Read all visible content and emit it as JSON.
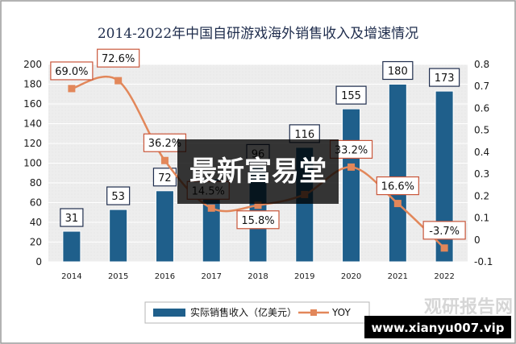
{
  "chart_data": {
    "type": "bar+line",
    "title": "2014-2022年中国自研游戏海外销售收入及增速情况",
    "categories": [
      "2014",
      "2015",
      "2016",
      "2017",
      "2018",
      "2019",
      "2020",
      "2021",
      "2022"
    ],
    "series": [
      {
        "name": "实际销售收入（亿美元）",
        "type": "bar",
        "axis": "left",
        "values": [
          31,
          53,
          72,
          84,
          96,
          116,
          155,
          180,
          173
        ],
        "labels": [
          "31",
          "53",
          "72",
          "",
          "96",
          "116",
          "155",
          "180",
          "173"
        ],
        "color": "#1f5f8b"
      },
      {
        "name": "YOY",
        "type": "line",
        "axis": "right",
        "values": [
          0.69,
          0.726,
          0.362,
          0.145,
          0.158,
          0.207,
          0.332,
          0.166,
          -0.037
        ],
        "labels": [
          "69.0%",
          "72.6%",
          "36.2%",
          "14.5%",
          "15.8%",
          "",
          "33.2%",
          "16.6%",
          "-3.7%"
        ],
        "color": "#e2875a"
      }
    ],
    "y_left": {
      "min": 0,
      "max": 200,
      "ticks": [
        "0",
        "20",
        "40",
        "60",
        "80",
        "100",
        "120",
        "140",
        "160",
        "180",
        "200"
      ]
    },
    "y_right": {
      "min": -0.1,
      "max": 0.8,
      "ticks": [
        "-0.1",
        "0",
        "0.1",
        "0.2",
        "0.3",
        "0.4",
        "0.5",
        "0.6",
        "0.7",
        "0.8"
      ]
    },
    "legend": {
      "placement": "bottom"
    }
  },
  "overlay": {
    "watermark_text": "最新富易堂",
    "corner_logo_text": "观研报告网",
    "corner_url": "www.xianyu007.vip"
  }
}
